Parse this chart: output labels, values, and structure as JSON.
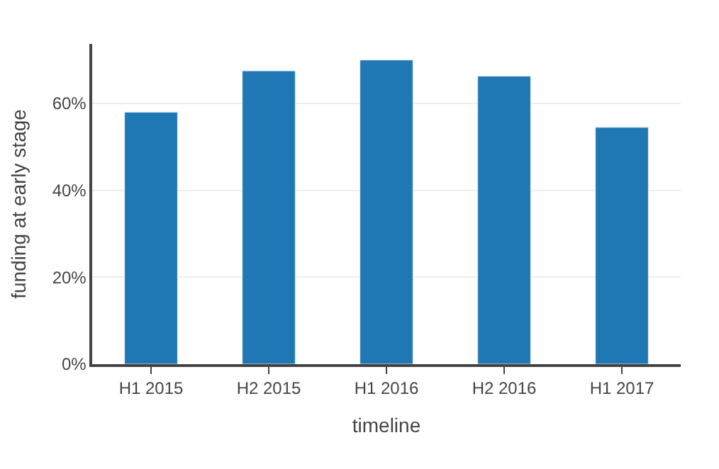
{
  "chart_data": {
    "type": "bar",
    "xlabel": "timeline",
    "ylabel": "funding at early stage",
    "categories": [
      "H1 2015",
      "H2 2015",
      "H1 2016",
      "H2 2016",
      "H1 2017"
    ],
    "values": [
      58,
      67.5,
      70,
      66.3,
      54.5
    ],
    "color": "#1f77b4",
    "ylim": [
      0,
      73.7
    ],
    "yticks": [
      {
        "value": 0,
        "label": "0%"
      },
      {
        "value": 20,
        "label": "20%"
      },
      {
        "value": 40,
        "label": "40%"
      },
      {
        "value": 60,
        "label": "60%"
      }
    ],
    "grid": "y"
  }
}
